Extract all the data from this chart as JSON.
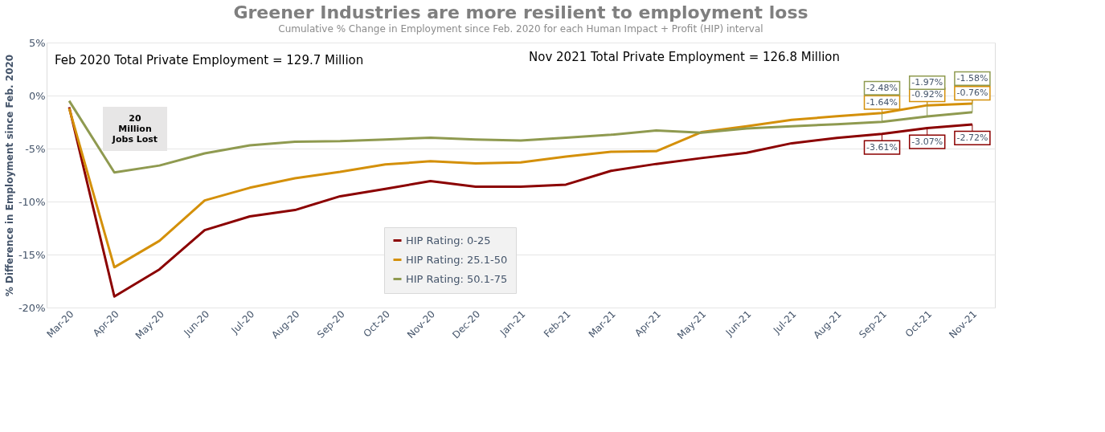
{
  "chart_data": {
    "type": "line",
    "title": "Greener Industries are more resilient to employment loss",
    "subtitle": "Cumulative % Change in Employment since Feb. 2020 for each Human Impact + Profit (HIP) interval",
    "ylabel": "% Difference in Employment since Feb. 2020",
    "categories": [
      "Mar-20",
      "Apr-20",
      "May-20",
      "Jun-20",
      "Jul-20",
      "Aug-20",
      "Sep-20",
      "Oct-20",
      "Nov-20",
      "Dec-20",
      "Jan-21",
      "Feb-21",
      "Mar-21",
      "Apr-21",
      "May-21",
      "Jun-21",
      "Jul-21",
      "Aug-21",
      "Sep-21",
      "Oct-21",
      "Nov-21"
    ],
    "series": [
      {
        "name": "HIP Rating: 0-25",
        "color": "#8b0000",
        "values": [
          -1.1,
          -18.96,
          -16.4,
          -12.7,
          -11.4,
          -10.8,
          -9.5,
          -8.8,
          -8.07,
          -8.6,
          -8.6,
          -8.4,
          -7.1,
          -6.45,
          -5.9,
          -5.4,
          -4.5,
          -4.0,
          -3.61,
          -3.07,
          -2.72
        ],
        "value_labels": [
          null,
          null,
          null,
          null,
          null,
          null,
          null,
          null,
          null,
          null,
          null,
          null,
          null,
          null,
          null,
          null,
          null,
          null,
          "-3.61%",
          "-3.07%",
          "-2.72%"
        ]
      },
      {
        "name": "HIP Rating: 25.1-50",
        "color": "#d4900a",
        "values": [
          -1.2,
          -16.2,
          -13.7,
          -9.9,
          -8.7,
          -7.8,
          -7.2,
          -6.5,
          -6.2,
          -6.4,
          -6.3,
          -5.75,
          -5.3,
          -5.25,
          -3.45,
          -2.9,
          -2.3,
          -1.95,
          -1.64,
          -0.92,
          -0.76
        ],
        "value_labels": [
          null,
          null,
          null,
          null,
          null,
          null,
          null,
          null,
          null,
          null,
          null,
          null,
          null,
          null,
          null,
          null,
          null,
          null,
          "-1.64%",
          "-0.92%",
          "-0.76%"
        ]
      },
      {
        "name": "HIP Rating: 50.1-75",
        "color": "#8f9a50",
        "values": [
          -0.5,
          -7.25,
          -6.6,
          -5.45,
          -4.7,
          -4.35,
          -4.3,
          -4.15,
          -3.97,
          -4.15,
          -4.25,
          -3.97,
          -3.7,
          -3.3,
          -3.5,
          -3.1,
          -2.9,
          -2.7,
          -2.48,
          -1.97,
          -1.58
        ],
        "value_labels": [
          null,
          null,
          null,
          null,
          null,
          null,
          null,
          null,
          null,
          null,
          null,
          null,
          null,
          null,
          null,
          null,
          null,
          null,
          "-2.48%",
          "-1.97%",
          "-1.58%"
        ]
      }
    ],
    "ylim": [
      -20,
      5
    ],
    "yticks": [
      {
        "value": -20,
        "label": "-20%"
      },
      {
        "value": -15,
        "label": "-15%"
      },
      {
        "value": -10,
        "label": "-10%"
      },
      {
        "value": -5,
        "label": "-5%"
      },
      {
        "value": 0,
        "label": "0%"
      },
      {
        "value": 5,
        "label": "5%"
      }
    ],
    "grid": "y",
    "legend": "bottom",
    "marker": "none",
    "line_style": "solid",
    "annotations": [
      "Feb 2020 Total Private Employment = 129.7 Million",
      "Nov 2021 Total Private Employment = 126.8 Million",
      "20\nMillion\nJobs Lost"
    ]
  }
}
